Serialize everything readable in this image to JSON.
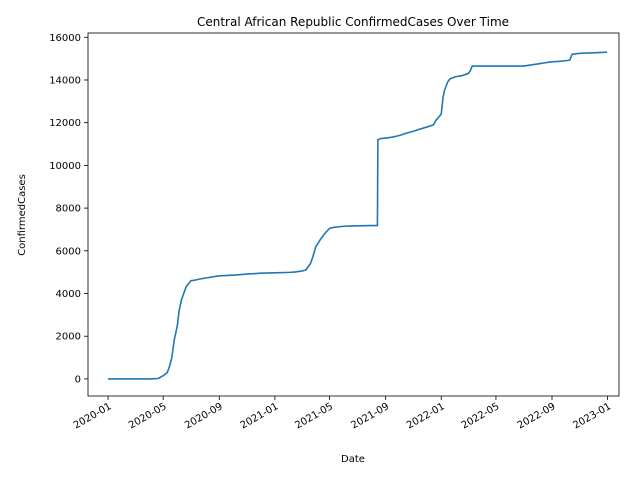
{
  "chart_data": {
    "type": "line",
    "title": "Central African Republic  ConfirmedCases Over Time",
    "xlabel": "Date",
    "ylabel": "ConfirmedCases",
    "xlim": [
      "2019-11-18",
      "2023-01-26"
    ],
    "ylim": [
      -800,
      16200
    ],
    "grid": false,
    "line_color": "#1f77b4",
    "x_ticks": [
      "2020-01",
      "2020-05",
      "2020-09",
      "2021-01",
      "2021-05",
      "2021-09",
      "2022-01",
      "2022-05",
      "2022-09",
      "2023-01"
    ],
    "y_ticks": [
      0,
      2000,
      4000,
      6000,
      8000,
      10000,
      12000,
      14000,
      16000
    ],
    "series": [
      {
        "x": [
          "2020-01-01",
          "2020-03-01",
          "2020-04-01",
          "2020-04-20",
          "2020-05-01",
          "2020-05-10",
          "2020-05-15",
          "2020-05-20",
          "2020-05-25",
          "2020-06-01",
          "2020-06-05",
          "2020-06-10",
          "2020-06-15",
          "2020-06-20",
          "2020-06-25",
          "2020-07-01",
          "2020-07-08",
          "2020-07-15",
          "2020-07-20",
          "2020-08-01",
          "2020-09-01",
          "2020-10-01",
          "2020-10-15",
          "2020-11-01",
          "2020-12-01",
          "2021-01-01",
          "2021-02-01",
          "2021-02-15",
          "2021-03-01",
          "2021-03-10",
          "2021-03-20",
          "2021-03-25",
          "2021-04-01",
          "2021-04-10",
          "2021-04-20",
          "2021-05-01",
          "2021-05-10",
          "2021-05-20",
          "2021-06-01",
          "2021-06-15",
          "2021-07-01",
          "2021-08-01",
          "2021-08-14",
          "2021-08-15",
          "2021-08-20",
          "2021-09-01",
          "2021-09-15",
          "2021-10-01",
          "2021-10-15",
          "2021-11-01",
          "2021-11-15",
          "2021-12-01",
          "2021-12-15",
          "2021-12-20",
          "2022-01-01",
          "2022-01-05",
          "2022-01-08",
          "2022-01-15",
          "2022-01-20",
          "2022-02-01",
          "2022-02-15",
          "2022-03-01",
          "2022-03-05",
          "2022-03-10",
          "2022-04-01",
          "2022-05-01",
          "2022-06-01",
          "2022-07-01",
          "2022-07-15",
          "2022-08-01",
          "2022-08-15",
          "2022-09-01",
          "2022-09-15",
          "2022-10-01",
          "2022-10-10",
          "2022-10-15",
          "2022-11-01",
          "2022-12-01",
          "2022-12-31"
        ],
        "y": [
          0,
          0,
          0,
          20,
          150,
          300,
          600,
          1000,
          1800,
          2500,
          3200,
          3700,
          4000,
          4300,
          4450,
          4600,
          4620,
          4650,
          4680,
          4720,
          4830,
          4860,
          4880,
          4910,
          4950,
          4970,
          4990,
          5010,
          5050,
          5100,
          5400,
          5700,
          6200,
          6500,
          6800,
          7050,
          7100,
          7120,
          7150,
          7160,
          7170,
          7180,
          7180,
          11200,
          11250,
          11280,
          11320,
          11400,
          11500,
          11600,
          11700,
          11800,
          11900,
          12100,
          12400,
          13200,
          13500,
          13900,
          14050,
          14150,
          14200,
          14300,
          14400,
          14650,
          14650,
          14650,
          14650,
          14650,
          14700,
          14750,
          14800,
          14850,
          14870,
          14900,
          14930,
          15200,
          15250,
          15270,
          15300
        ]
      }
    ]
  }
}
